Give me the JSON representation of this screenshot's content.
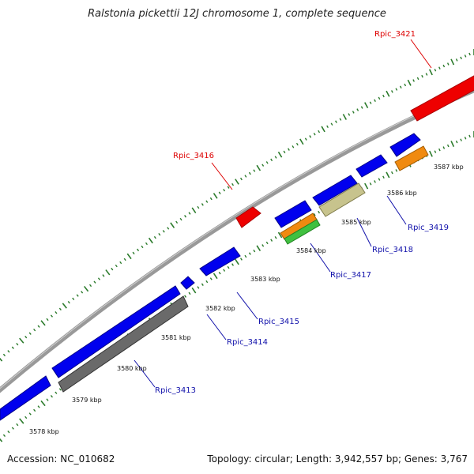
{
  "title": "Ralstonia pickettii 12J chromosome 1, complete sequence",
  "footer": {
    "accession": "Accession: NC_010682",
    "summary": "Topology: circular; Length: 3,942,557 bp; Genes: 3,767"
  },
  "ticks": [
    "3578 kbp",
    "3579 kbp",
    "3580 kbp",
    "3581 kbp",
    "3582 kbp",
    "3583 kbp",
    "3584 kbp",
    "3585 kbp",
    "3586 kbp",
    "3587 kbp"
  ],
  "colors": {
    "blue": "#0000ee",
    "red": "#ee0000",
    "gray": "#6a6a6a",
    "olive": "#c7c38d",
    "orange": "#f08a10",
    "green": "#40c040",
    "backbone": "#888888",
    "ruler": "#2a7a2a",
    "label_red": "#dd0000",
    "label_blue": "#1010aa"
  },
  "gene_labels": [
    {
      "text": "Rpic_3421",
      "color": "red"
    },
    {
      "text": "Rpic_3416",
      "color": "red"
    },
    {
      "text": "Rpic_3419",
      "color": "blue"
    },
    {
      "text": "Rpic_3418",
      "color": "blue"
    },
    {
      "text": "Rpic_3417",
      "color": "blue"
    },
    {
      "text": "Rpic_3415",
      "color": "blue"
    },
    {
      "text": "Rpic_3414",
      "color": "blue"
    },
    {
      "text": "Rpic_3413",
      "color": "blue"
    }
  ]
}
